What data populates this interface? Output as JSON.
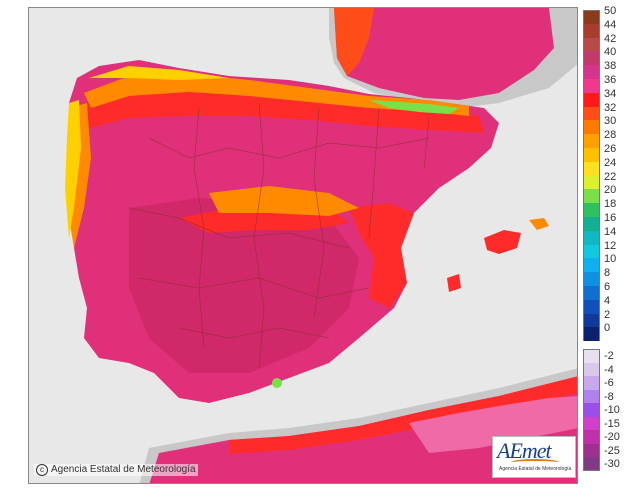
{
  "copyright": "Agencia Estatal de Meteorología",
  "logo": {
    "mark": "AEmet",
    "sub": "Agencia Estatal de Meteorología"
  },
  "legend": {
    "positive": [
      {
        "label": "50",
        "color": "#8b3a1c"
      },
      {
        "label": "44",
        "color": "#a83d2f"
      },
      {
        "label": "42",
        "color": "#b84a4a"
      },
      {
        "label": "40",
        "color": "#c23a6a"
      },
      {
        "label": "38",
        "color": "#d4348a"
      },
      {
        "label": "36",
        "color": "#f0388c"
      },
      {
        "label": "34",
        "color": "#ff1a1a"
      },
      {
        "label": "32",
        "color": "#ff4d1a"
      },
      {
        "label": "30",
        "color": "#ff7a00"
      },
      {
        "label": "28",
        "color": "#ffa000"
      },
      {
        "label": "26",
        "color": "#ffc000"
      },
      {
        "label": "24",
        "color": "#ffe020"
      },
      {
        "label": "22",
        "color": "#dcf030"
      },
      {
        "label": "20",
        "color": "#7ae04a"
      },
      {
        "label": "18",
        "color": "#30c060"
      },
      {
        "label": "16",
        "color": "#10b090"
      },
      {
        "label": "14",
        "color": "#10b8c0"
      },
      {
        "label": "12",
        "color": "#10c8e0"
      },
      {
        "label": "10",
        "color": "#10b0f0"
      },
      {
        "label": "8",
        "color": "#1090e0"
      },
      {
        "label": "6",
        "color": "#1070d0"
      },
      {
        "label": "4",
        "color": "#1050b8"
      },
      {
        "label": "2",
        "color": "#103a98"
      },
      {
        "label": "0",
        "color": "#0a2070"
      }
    ],
    "negative": [
      {
        "label": "-2",
        "color": "#e8e0f0"
      },
      {
        "label": "-4",
        "color": "#d8c8ec"
      },
      {
        "label": "-6",
        "color": "#c8a8ec"
      },
      {
        "label": "-8",
        "color": "#b080ec"
      },
      {
        "label": "-10",
        "color": "#9a50e8"
      },
      {
        "label": "-15",
        "color": "#d040c8"
      },
      {
        "label": "-20",
        "color": "#c030a8"
      },
      {
        "label": "-25",
        "color": "#a03090"
      },
      {
        "label": "-30",
        "color": "#803a88"
      }
    ]
  },
  "colors": {
    "sea": "#e8e8e8",
    "land_other": "#c8c8c8",
    "hot_magenta": "#e0307a",
    "very_hot": "#d02868",
    "red": "#ff2a2a",
    "orange": "#ff8a00",
    "yellow": "#ffd000",
    "green": "#7ae04a",
    "border": "#8a3030"
  }
}
